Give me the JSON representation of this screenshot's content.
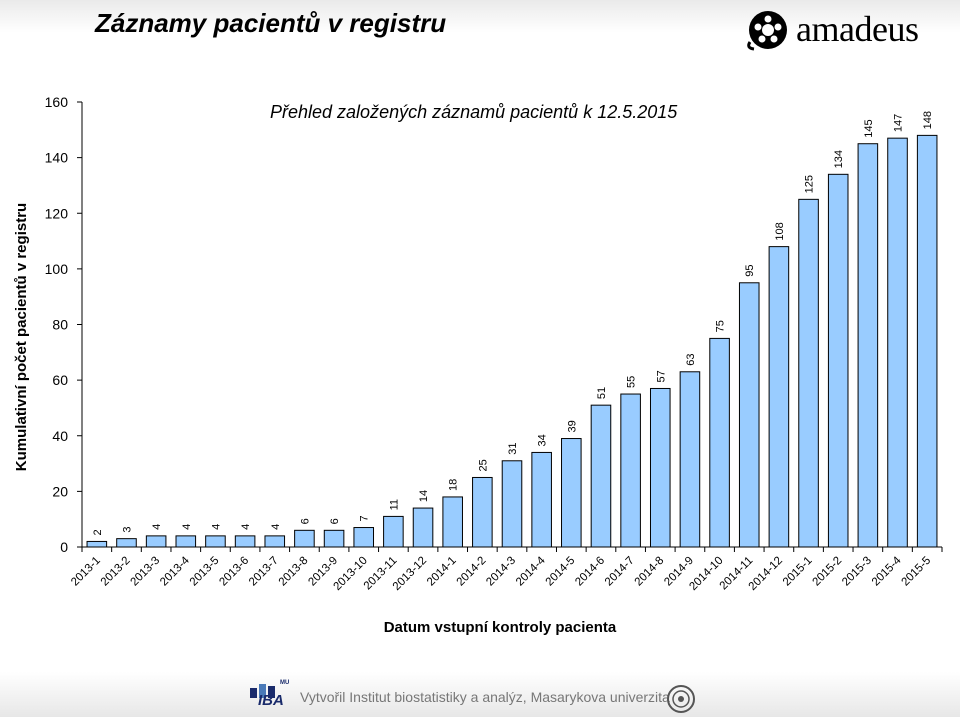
{
  "header": {
    "title": "Záznamy pacientů v registru",
    "brand": "amadeus",
    "brand_icon": "film-reel-icon"
  },
  "footer": {
    "credit": "Vytvořil Institut biostatistiky a analýz, Masarykova univerzita",
    "logo_text": "IBA",
    "logo_superscript": "MU"
  },
  "colors": {
    "bar_fill": "#99ccff",
    "bar_stroke": "#000000",
    "text": "#000000"
  },
  "chart_data": {
    "type": "bar",
    "title": "Přehled založených záznamů pacientů k 12.5.2015",
    "xlabel": "Datum vstupní kontroly pacienta",
    "ylabel": "Kumulativní počet pacientů v registru",
    "ylim": [
      0,
      160
    ],
    "yticks": [
      0,
      20,
      40,
      60,
      80,
      100,
      120,
      140,
      160
    ],
    "grid": false,
    "legend": "none",
    "categories": [
      "2013-1",
      "2013-2",
      "2013-3",
      "2013-4",
      "2013-5",
      "2013-6",
      "2013-7",
      "2013-8",
      "2013-9",
      "2013-10",
      "2013-11",
      "2013-12",
      "2014-1",
      "2014-2",
      "2014-3",
      "2014-4",
      "2014-5",
      "2014-6",
      "2014-7",
      "2014-8",
      "2014-9",
      "2014-10",
      "2014-11",
      "2014-12",
      "2015-1",
      "2015-2",
      "2015-3",
      "2015-4",
      "2015-5"
    ],
    "values": [
      2,
      3,
      4,
      4,
      4,
      4,
      4,
      6,
      6,
      7,
      11,
      14,
      18,
      25,
      31,
      34,
      39,
      51,
      55,
      57,
      63,
      75,
      95,
      108,
      125,
      134,
      145,
      147,
      148
    ]
  }
}
